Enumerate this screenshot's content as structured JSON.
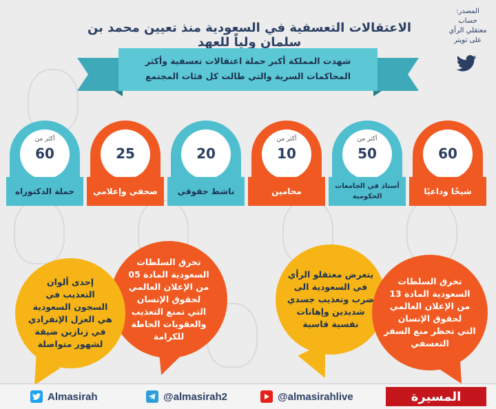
{
  "header": {
    "title": "الاعتقالات التعسفية في السعودية منذ تعيين محمد بن سلمان ولياً للعهد",
    "source_lines": [
      "المصدر:",
      "حساب",
      "معتقلي الرأي",
      "على تويتر"
    ],
    "source_icon": "twitter-bird-icon"
  },
  "ribbon": {
    "line1": "شهدت المملكة أكبر حملة اعتقالات تعسفية وأكثر",
    "line2": "المحاكمات السرية والتي طالت كل فئات المجتمع"
  },
  "categories": [
    {
      "more": "",
      "count": "60",
      "label": "شيخًا وداعيًا",
      "color": "orange"
    },
    {
      "more": "أكثر من",
      "count": "50",
      "label": "أستاذ في الجامعات الحكومية",
      "color": "blue"
    },
    {
      "more": "أكثر من",
      "count": "10",
      "label": "محامين",
      "color": "orange"
    },
    {
      "more": "",
      "count": "20",
      "label": "ناشط حقوقي",
      "color": "blue"
    },
    {
      "more": "",
      "count": "25",
      "label": "صحفي وإعلامي",
      "color": "orange"
    },
    {
      "more": "أكثر من",
      "count": "60",
      "label": "حملة الدكتوراه",
      "color": "blue"
    }
  ],
  "bubbles": {
    "right_orange": [
      "تخرق السلطات",
      "السعودية المادة 13",
      "من الإعلان العالمي",
      "لحقوق الإنسان",
      "التي تحظر منع السفر",
      "التعسفي"
    ],
    "right_yellow": [
      "يتعرض معتقلو الرأي",
      "في السعودية الى",
      "ضرب وتعذيب جسدي",
      "شديدين وإهانات",
      "نفسية قاسية"
    ],
    "left_orange": [
      "تخرق السلطات",
      "السعودية المادة 05",
      "من الإعلان العالمي",
      "لحقوق الإنسان",
      "التي تمنع التعذيب",
      "والعقوبات الحاطة",
      "للكرامة"
    ],
    "left_yellow": [
      "إحدى ألوان",
      "التعذيب في",
      "السجون السعودية",
      "هي العزل الإنفرادي",
      "في زنازين ضيقة",
      "لشهور متواصلة"
    ]
  },
  "footer": {
    "twitter": "Almasirah",
    "telegram": "@almasirah2",
    "youtube": "@almasirahlive",
    "logo": "المسيرة"
  },
  "colors": {
    "orange": "#f05a22",
    "blue": "#4fbfcf",
    "yellow": "#f6b417",
    "navy": "#2b3f63"
  }
}
